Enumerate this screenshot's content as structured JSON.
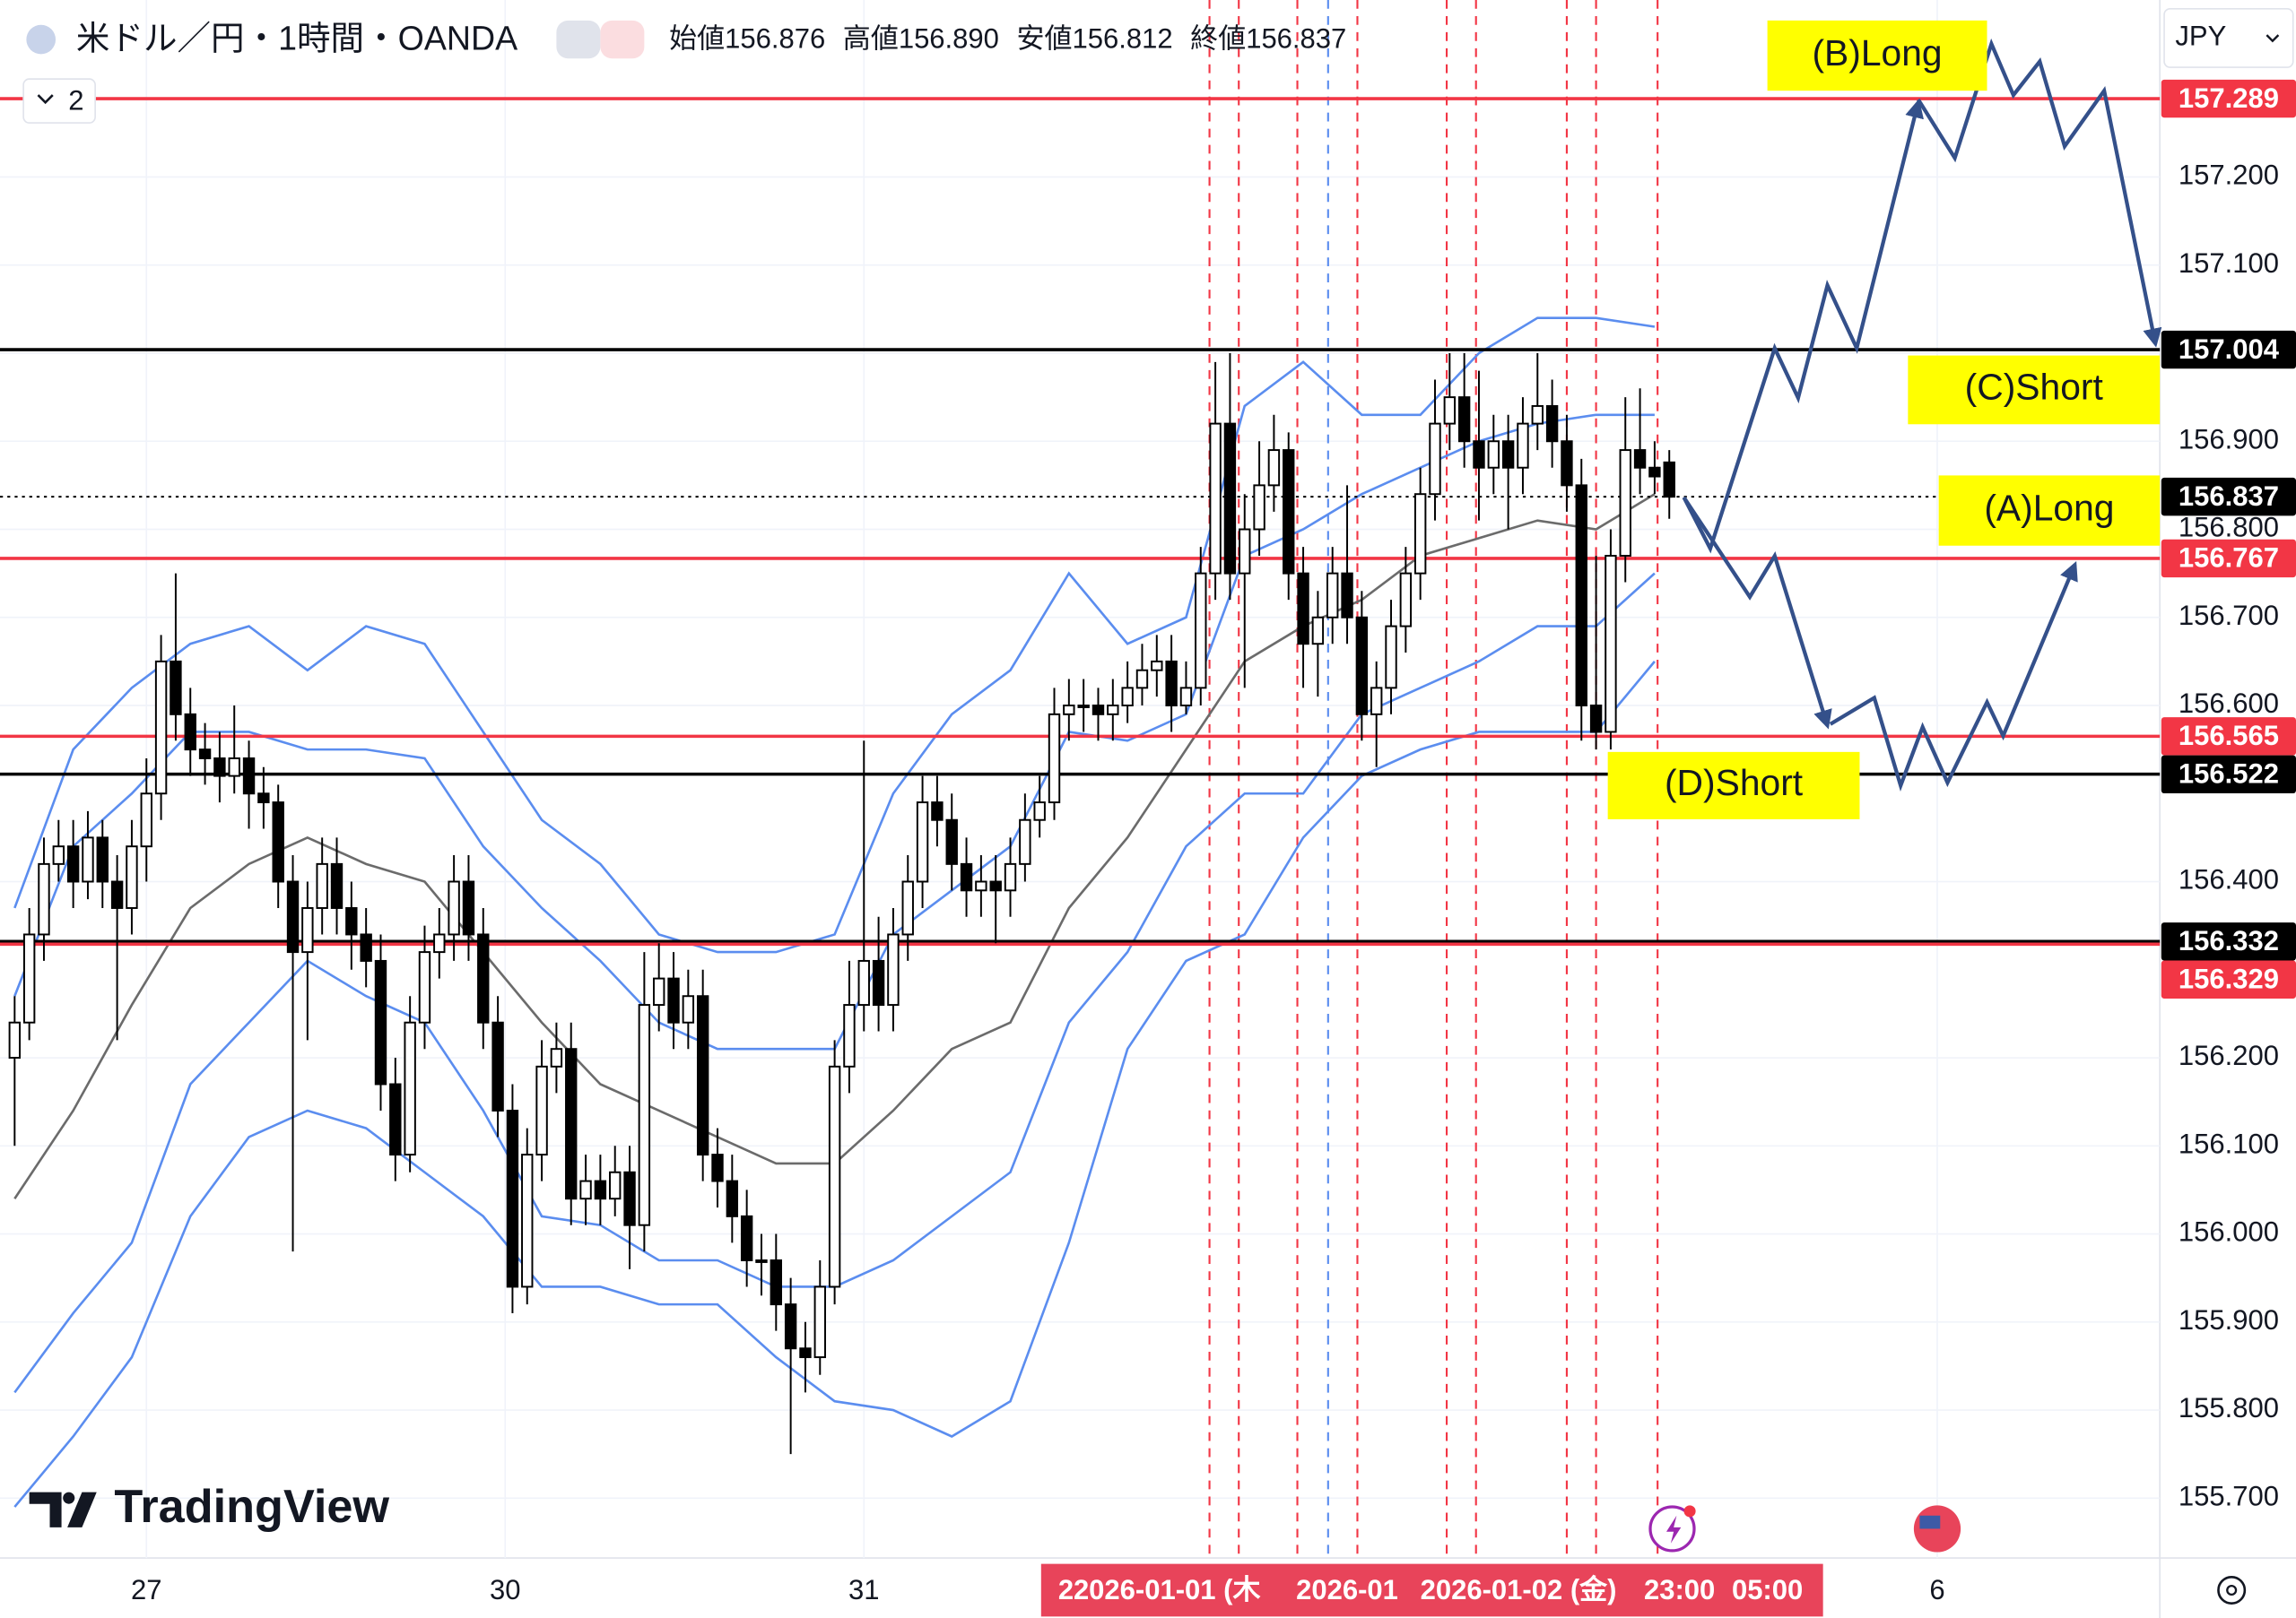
{
  "header": {
    "symbol": "米ドル／円・1時間・OANDA",
    "ohlc": [
      {
        "label": "始値",
        "value": "156.876"
      },
      {
        "label": "高値",
        "value": "156.890"
      },
      {
        "label": "安値",
        "value": "156.812"
      },
      {
        "label": "終値",
        "value": "156.837"
      }
    ]
  },
  "toolbar": {
    "collapse": "2"
  },
  "logo": "TradingView",
  "crosshair_dates": [
    "2",
    "2026-01-01 (木",
    "2026-01",
    "2026-01-02 (金)",
    "23:00",
    "05:00"
  ],
  "chart_data": {
    "type": "candlestick",
    "currency": "JPY",
    "grid": true,
    "open": [
      156.2,
      156.24,
      156.34,
      156.42,
      156.44,
      156.4,
      156.45,
      156.4,
      156.37,
      156.44,
      156.5,
      156.65,
      156.59,
      156.55,
      156.54,
      156.52,
      156.54,
      156.5,
      156.49,
      156.4,
      156.32,
      156.37,
      156.42,
      156.37,
      156.34,
      156.31,
      156.17,
      156.09,
      156.24,
      156.32,
      156.34,
      156.4,
      156.34,
      156.24,
      156.14,
      155.94,
      156.09,
      156.19,
      156.21,
      156.04,
      156.06,
      156.04,
      156.07,
      156.01,
      156.26,
      156.29,
      156.24,
      156.27,
      156.09,
      156.06,
      156.02,
      155.97,
      155.97,
      155.92,
      155.87,
      155.86,
      155.94,
      156.19,
      156.26,
      156.31,
      156.26,
      156.34,
      156.4,
      156.49,
      156.47,
      156.42,
      156.39,
      156.4,
      156.39,
      156.42,
      156.47,
      156.49,
      156.59,
      156.6,
      156.6,
      156.59,
      156.6,
      156.62,
      156.64,
      156.65,
      156.6,
      156.62,
      156.75,
      156.92,
      156.75,
      156.8,
      156.85,
      156.89,
      156.75,
      156.67,
      156.7,
      156.75,
      156.7,
      156.59,
      156.62,
      156.69,
      156.75,
      156.84,
      156.92,
      156.95,
      156.9,
      156.87,
      156.9,
      156.87,
      156.92,
      156.94,
      156.9,
      156.85,
      156.6,
      156.57,
      156.77,
      156.89,
      156.87,
      156.876
    ],
    "high": [
      156.27,
      156.37,
      156.45,
      156.47,
      156.47,
      156.48,
      156.47,
      156.43,
      156.47,
      156.54,
      156.68,
      156.75,
      156.62,
      156.58,
      156.57,
      156.6,
      156.56,
      156.53,
      156.51,
      156.43,
      156.4,
      156.45,
      156.45,
      156.4,
      156.37,
      156.34,
      156.2,
      156.27,
      156.35,
      156.37,
      156.43,
      156.43,
      156.37,
      156.27,
      156.17,
      156.12,
      156.22,
      156.24,
      156.24,
      156.09,
      156.09,
      156.1,
      156.1,
      156.32,
      156.33,
      156.32,
      156.3,
      156.3,
      156.12,
      156.09,
      156.05,
      156.0,
      156.0,
      155.95,
      155.9,
      155.97,
      156.22,
      156.31,
      156.56,
      156.36,
      156.37,
      156.43,
      156.52,
      156.52,
      156.5,
      156.45,
      156.43,
      156.43,
      156.45,
      156.5,
      156.52,
      156.62,
      156.63,
      156.63,
      156.62,
      156.63,
      156.65,
      156.67,
      156.68,
      156.68,
      156.65,
      156.78,
      156.99,
      157.0,
      156.84,
      156.9,
      156.93,
      156.91,
      156.78,
      156.73,
      156.78,
      156.85,
      156.73,
      156.65,
      156.72,
      156.78,
      156.87,
      156.97,
      157.0,
      157.0,
      156.98,
      156.93,
      156.93,
      156.95,
      157.0,
      156.97,
      156.93,
      156.88,
      156.77,
      156.8,
      156.95,
      156.96,
      156.9,
      156.89
    ],
    "low": [
      156.1,
      156.22,
      156.31,
      156.4,
      156.37,
      156.38,
      156.37,
      156.22,
      156.34,
      156.4,
      156.47,
      156.56,
      156.52,
      156.51,
      156.49,
      156.5,
      156.46,
      156.46,
      156.37,
      155.98,
      156.22,
      156.34,
      156.34,
      156.3,
      156.28,
      156.14,
      156.06,
      156.07,
      156.21,
      156.29,
      156.31,
      156.31,
      156.21,
      156.11,
      155.91,
      155.92,
      156.06,
      156.16,
      156.01,
      156.01,
      156.01,
      156.02,
      155.96,
      155.98,
      156.23,
      156.21,
      156.21,
      156.06,
      156.03,
      155.99,
      155.94,
      155.93,
      155.89,
      155.75,
      155.82,
      155.84,
      155.92,
      156.16,
      156.23,
      156.23,
      156.23,
      156.31,
      156.37,
      156.44,
      156.39,
      156.36,
      156.36,
      156.33,
      156.36,
      156.4,
      156.45,
      156.47,
      156.56,
      156.57,
      156.56,
      156.56,
      156.58,
      156.6,
      156.61,
      156.57,
      156.59,
      156.6,
      156.72,
      156.72,
      156.62,
      156.77,
      156.82,
      156.72,
      156.62,
      156.61,
      156.67,
      156.67,
      156.56,
      156.53,
      156.59,
      156.66,
      156.72,
      156.81,
      156.89,
      156.87,
      156.81,
      156.84,
      156.8,
      156.84,
      156.89,
      156.87,
      156.82,
      156.56,
      156.55,
      156.55,
      156.74,
      156.84,
      156.84,
      156.812
    ],
    "close": [
      156.24,
      156.34,
      156.42,
      156.44,
      156.4,
      156.45,
      156.4,
      156.37,
      156.44,
      156.5,
      156.65,
      156.59,
      156.55,
      156.54,
      156.52,
      156.54,
      156.5,
      156.49,
      156.4,
      156.32,
      156.37,
      156.42,
      156.37,
      156.34,
      156.31,
      156.17,
      156.09,
      156.24,
      156.32,
      156.34,
      156.4,
      156.34,
      156.24,
      156.14,
      155.94,
      156.09,
      156.19,
      156.21,
      156.04,
      156.06,
      156.04,
      156.07,
      156.01,
      156.26,
      156.29,
      156.24,
      156.27,
      156.09,
      156.06,
      156.02,
      155.97,
      155.97,
      155.92,
      155.87,
      155.86,
      155.94,
      156.19,
      156.26,
      156.31,
      156.26,
      156.34,
      156.4,
      156.49,
      156.47,
      156.42,
      156.39,
      156.4,
      156.39,
      156.42,
      156.47,
      156.49,
      156.59,
      156.6,
      156.6,
      156.59,
      156.6,
      156.62,
      156.64,
      156.65,
      156.6,
      156.62,
      156.75,
      156.92,
      156.75,
      156.8,
      156.85,
      156.89,
      156.75,
      156.67,
      156.7,
      156.75,
      156.7,
      156.59,
      156.62,
      156.69,
      156.75,
      156.84,
      156.92,
      156.95,
      156.9,
      156.87,
      156.9,
      156.87,
      156.92,
      156.94,
      156.9,
      156.85,
      156.6,
      156.57,
      156.77,
      156.89,
      156.87,
      156.86,
      156.837
    ],
    "bands": {
      "x": [
        0,
        4,
        8,
        12,
        16,
        20,
        24,
        28,
        32,
        36,
        40,
        44,
        48,
        52,
        56,
        60,
        64,
        68,
        72,
        76,
        80,
        84,
        88,
        92,
        96,
        100,
        104,
        108,
        112
      ],
      "lines": [
        {
          "color": "#5b8def",
          "values": [
            156.37,
            156.55,
            156.62,
            156.67,
            156.69,
            156.64,
            156.69,
            156.67,
            156.57,
            156.47,
            156.42,
            156.34,
            156.32,
            156.32,
            156.34,
            156.5,
            156.59,
            156.64,
            156.75,
            156.67,
            156.7,
            156.94,
            156.99,
            156.93,
            156.93,
            157.0,
            157.04,
            157.04,
            157.03
          ]
        },
        {
          "color": "#5b8def",
          "values": [
            156.27,
            156.44,
            156.5,
            156.57,
            156.57,
            156.55,
            156.55,
            156.54,
            156.44,
            156.37,
            156.31,
            156.24,
            156.21,
            156.21,
            156.21,
            156.34,
            156.39,
            156.44,
            156.57,
            156.56,
            156.59,
            156.77,
            156.8,
            156.84,
            156.87,
            156.9,
            156.92,
            156.93,
            156.93
          ]
        },
        {
          "color": "#6b6b6b",
          "values": [
            156.04,
            156.14,
            156.26,
            156.37,
            156.42,
            156.45,
            156.42,
            156.4,
            156.32,
            156.24,
            156.17,
            156.14,
            156.11,
            156.08,
            156.08,
            156.14,
            156.21,
            156.24,
            156.37,
            156.45,
            156.55,
            156.65,
            156.69,
            156.72,
            156.77,
            156.79,
            156.81,
            156.8,
            156.84
          ]
        },
        {
          "color": "#5b8def",
          "values": [
            155.82,
            155.91,
            155.99,
            156.17,
            156.24,
            156.31,
            156.27,
            156.24,
            156.14,
            156.02,
            156.01,
            155.97,
            155.97,
            155.94,
            155.94,
            155.97,
            156.02,
            156.07,
            156.24,
            156.32,
            156.44,
            156.5,
            156.5,
            156.59,
            156.62,
            156.65,
            156.69,
            156.69,
            156.75
          ]
        },
        {
          "color": "#5b8def",
          "values": [
            155.69,
            155.77,
            155.86,
            156.02,
            156.11,
            156.14,
            156.12,
            156.07,
            156.02,
            155.94,
            155.94,
            155.92,
            155.92,
            155.86,
            155.81,
            155.8,
            155.77,
            155.81,
            155.99,
            156.21,
            156.31,
            156.34,
            156.45,
            156.52,
            156.55,
            156.57,
            156.57,
            156.57,
            156.65
          ]
        }
      ]
    },
    "xlim": [
      -1,
      146.5
    ],
    "xticks": [
      {
        "value": 9,
        "label": "27"
      },
      {
        "value": 33.5,
        "label": "30"
      },
      {
        "value": 58,
        "label": "31"
      },
      {
        "value": 131.3,
        "label": "6"
      }
    ],
    "ylim": [
      155.632,
      157.401
    ],
    "yticks": [
      {
        "value": 155.7,
        "label": "155.700"
      },
      {
        "value": 155.8,
        "label": "155.800"
      },
      {
        "value": 155.9,
        "label": "155.900"
      },
      {
        "value": 156.0,
        "label": "156.000"
      },
      {
        "value": 156.1,
        "label": "156.100"
      },
      {
        "value": 156.2,
        "label": "156.200"
      },
      {
        "value": 156.4,
        "label": "156.400"
      },
      {
        "value": 156.6,
        "label": "156.600"
      },
      {
        "value": 156.7,
        "label": "156.700"
      },
      {
        "value": 156.8,
        "label": "156.800"
      },
      {
        "value": 156.9,
        "label": "156.900"
      },
      {
        "value": 157.0,
        "label": "157.000"
      },
      {
        "value": 157.1,
        "label": "157.100"
      },
      {
        "value": 157.2,
        "label": "157.200"
      }
    ],
    "price_lines": [
      {
        "price": 157.289,
        "color": "#f23645"
      },
      {
        "price": 157.004,
        "color": "#000000"
      },
      {
        "price": 156.767,
        "color": "#f23645"
      },
      {
        "price": 156.565,
        "color": "#f23645"
      },
      {
        "price": 156.522,
        "color": "#000000"
      },
      {
        "price": 156.332,
        "color": "#000000"
      },
      {
        "price": 156.329,
        "color": "#f23645"
      }
    ],
    "last_price": 156.837,
    "annotations": [
      "(B)Long",
      "(C)Short",
      "(A)Long",
      "(D)Short"
    ]
  }
}
